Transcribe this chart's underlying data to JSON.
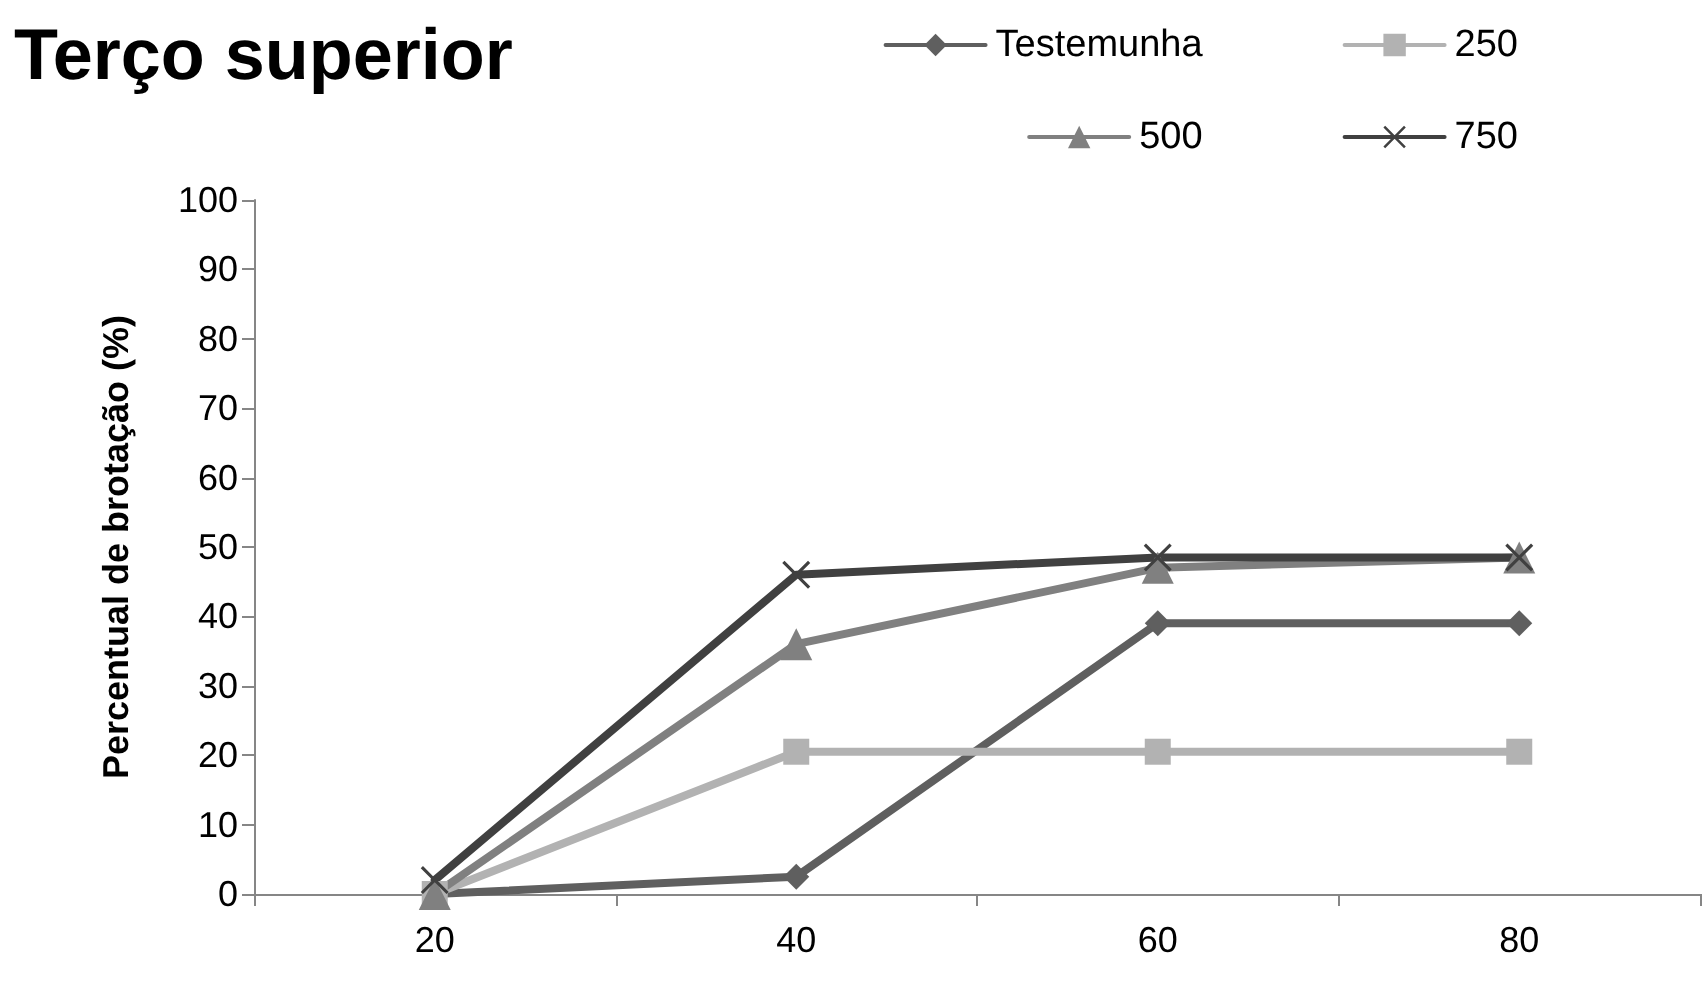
{
  "chart_data": {
    "type": "line",
    "title": "Terço superior",
    "ylabel": "Percentual de brotação (%)",
    "categories": [
      "20",
      "40",
      "60",
      "80"
    ],
    "series": [
      {
        "name": "Testemunha",
        "color": "#5f5f5f",
        "marker": "diamond",
        "values": [
          0,
          2.5,
          39,
          39
        ]
      },
      {
        "name": "250",
        "color": "#b2b2b2",
        "marker": "square",
        "values": [
          0,
          20.5,
          20.5,
          20.5
        ]
      },
      {
        "name": "500",
        "color": "#808080",
        "marker": "triangle",
        "values": [
          0,
          36,
          47,
          48.5
        ]
      },
      {
        "name": "750",
        "color": "#404040",
        "marker": "cross",
        "values": [
          2,
          46,
          48.5,
          48.5
        ]
      }
    ],
    "ylim": [
      0,
      100
    ],
    "yticks": [
      0,
      10,
      20,
      30,
      40,
      50,
      60,
      70,
      80,
      90,
      100
    ],
    "grid": false,
    "legend": "top right",
    "line_style": "solid"
  }
}
